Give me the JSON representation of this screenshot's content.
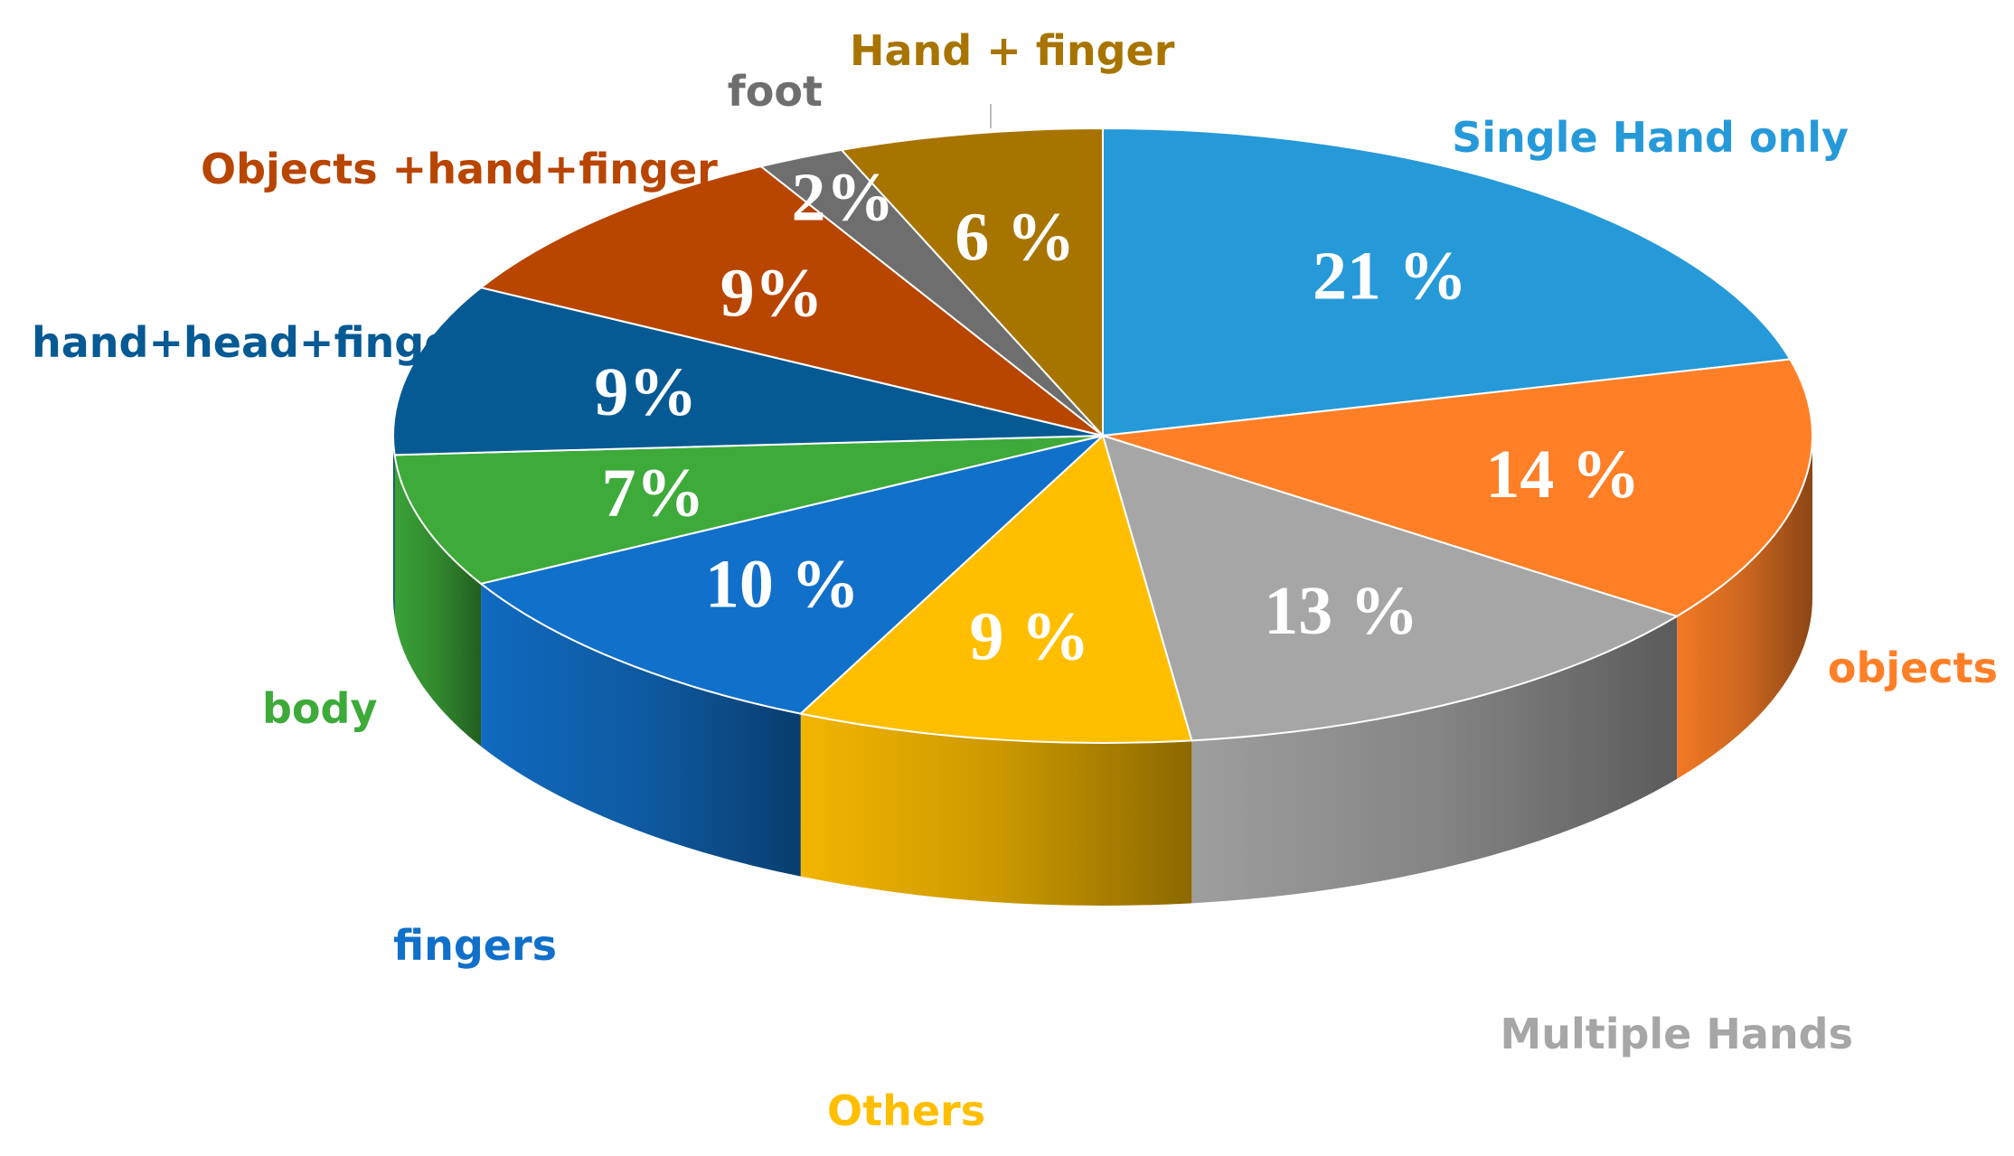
{
  "chart_data": {
    "type": "pie",
    "title": "",
    "slices": [
      {
        "name": "Single Hand only",
        "value": 21,
        "label": "21 %",
        "color": "#2699D9",
        "label_color": "#2699D9"
      },
      {
        "name": "objects",
        "value": 14,
        "label": "14 %",
        "color": "#FF7F27",
        "label_color": "#FF7F27"
      },
      {
        "name": "Multiple Hands",
        "value": 13,
        "label": "13 %",
        "color": "#A6A6A6",
        "label_color": "#A6A6A6"
      },
      {
        "name": "Others",
        "value": 9,
        "label": "9 %",
        "color": "#FFBF00",
        "label_color": "#FFBF00"
      },
      {
        "name": "fingers",
        "value": 10,
        "label": "10 %",
        "color": "#1170C9",
        "label_color": "#1170C9"
      },
      {
        "name": "body",
        "value": 7,
        "label": "7%",
        "color": "#3DAA3A",
        "label_color": "#3DAA3A"
      },
      {
        "name": "hand+head+finger",
        "value": 9,
        "label": "9%",
        "color": "#065A94",
        "label_color": "#065A94"
      },
      {
        "name": "Objects +hand+finger",
        "value": 9,
        "label": "9%",
        "color": "#B84500",
        "label_color": "#B84500"
      },
      {
        "name": "foot",
        "value": 2,
        "label": "2%",
        "color": "#6E6E6E",
        "label_color": "#6E6E6E"
      },
      {
        "name": "Hand + finger",
        "value": 6,
        "label": "6 %",
        "color": "#A87400",
        "label_color": "#A87400"
      }
    ],
    "start_angle_deg": 0,
    "direction": "clockwise",
    "style": "3d"
  }
}
